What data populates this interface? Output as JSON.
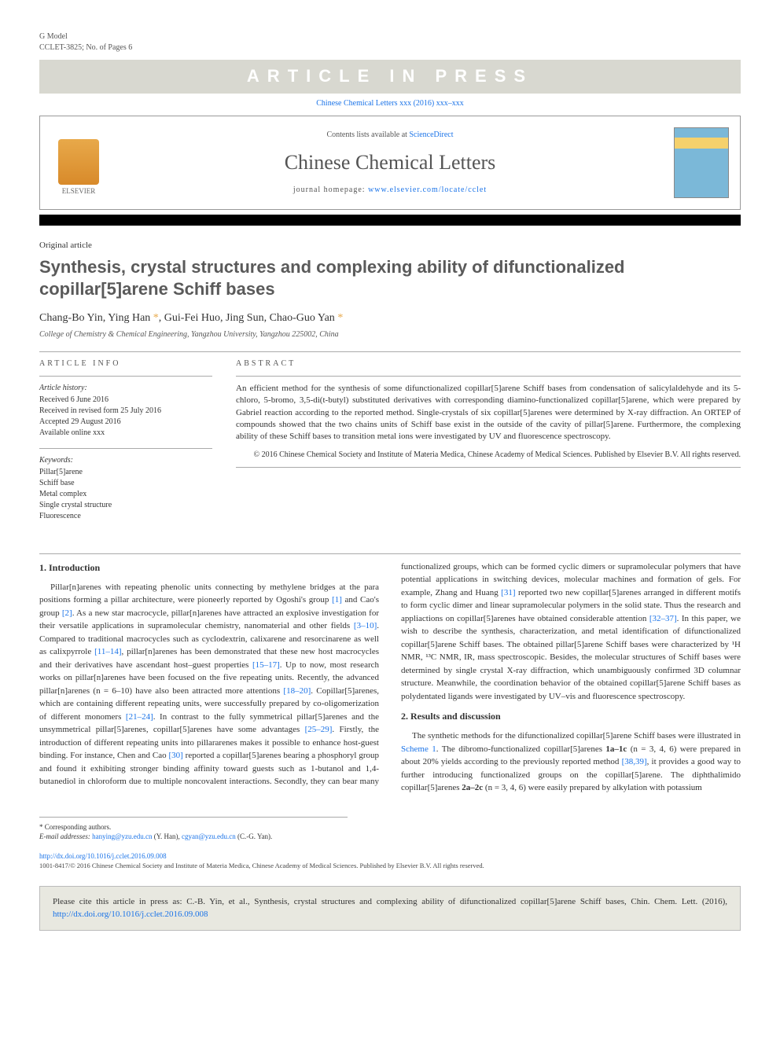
{
  "header": {
    "model": "G Model",
    "ref": "CCLET-3825; No. of Pages 6"
  },
  "press_banner": "ARTICLE IN PRESS",
  "journal_line": "Chinese Chemical Letters xxx (2016) xxx–xxx",
  "journal_box": {
    "contents_text": "Contents lists available at ",
    "contents_link": "ScienceDirect",
    "journal_name": "Chinese Chemical Letters",
    "homepage_label": "journal homepage: ",
    "homepage_url": "www.elsevier.com/locate/cclet",
    "publisher_label": "ELSEVIER"
  },
  "article_type": "Original article",
  "title": "Synthesis, crystal structures and complexing ability of difunctionalized copillar[5]arene Schiff bases",
  "authors_html": "Chang-Bo Yin, Ying Han *, Gui-Fei Huo, Jing Sun, Chao-Guo Yan *",
  "affiliation": "College of Chemistry & Chemical Engineering, Yangzhou University, Yangzhou 225002, China",
  "info": {
    "head": "ARTICLE INFO",
    "history_label": "Article history:",
    "history": [
      "Received 6 June 2016",
      "Received in revised form 25 July 2016",
      "Accepted 29 August 2016",
      "Available online xxx"
    ],
    "keywords_label": "Keywords:",
    "keywords": [
      "Pillar[5]arene",
      "Schiff base",
      "Metal complex",
      "Single crystal structure",
      "Fluorescence"
    ]
  },
  "abstract": {
    "head": "ABSTRACT",
    "text": "An efficient method for the synthesis of some difunctionalized copillar[5]arene Schiff bases from condensation of salicylaldehyde and its 5-chloro, 5-bromo, 3,5-di(t-butyl) substituted derivatives with corresponding diamino-functionalized copillar[5]arene, which were prepared by Gabriel reaction according to the reported method. Single-crystals of six copillar[5]arenes were determined by X-ray diffraction. An ORTEP of compounds showed that the two chains units of Schiff base exist in the outside of the cavity of pillar[5]arene. Furthermore, the complexing ability of these Schiff bases to transition metal ions were investigated by UV and fluorescence spectroscopy.",
    "copyright": "© 2016 Chinese Chemical Society and Institute of Materia Medica, Chinese Academy of Medical Sciences. Published by Elsevier B.V. All rights reserved."
  },
  "sections": {
    "intro_head": "1. Introduction",
    "results_head": "2. Results and discussion"
  },
  "body": {
    "col1_p1": "Pillar[n]arenes with repeating phenolic units connecting by methylene bridges at the para positions forming a pillar architecture, were pioneerly reported by Ogoshi's group [1] and Cao's group [2]. As a new star macrocycle, pillar[n]arenes have attracted an explosive investigation for their versatile applications in supramolecular chemistry, nanomaterial and other fields [3–10]. Compared to traditional macrocycles such as cyclodextrin, calixarene and resorcinarene as well as calixpyrrole [11–14], pillar[n]arenes has been demonstrated that these new host macrocycles and their derivatives have ascendant host–guest properties [15–17]. Up to now, most research works on pillar[n]arenes have been focused on the five repeating units. Recently, the advanced pillar[n]arenes (n = 6–10) have also been attracted more attentions [18–20]. Copillar[5]arenes, which are containing different repeating units, were successfully prepared by co-oligomerization of different monomers [21–24]. In contrast to the fully symmetrical pillar[5]arenes and the unsymmetrical pillar[5]arenes, copillar[5]arenes have some advantages [25–29]. Firstly, the introduction of different repeating units into pillararenes makes it possible to enhance host-guest binding. For instance, Chen and Cao [30] reported a copillar[5]arenes bearing a phosphoryl group and found it exhibiting stronger binding affinity toward guests such as 1-butanol and",
    "col2_p1": "1,4-butanediol in chloroform due to multiple noncovalent interactions. Secondly, they can bear many functionalized groups, which can be formed cyclic dimers or supramolecular polymers that have potential applications in switching devices, molecular machines and formation of gels. For example, Zhang and Huang [31] reported two new copillar[5]arenes arranged in different motifs to form cyclic dimer and linear supramolecular polymers in the solid state. Thus the research and appliactions on copillar[5]arenes have obtained considerable attention [32–37]. In this paper, we wish to describe the synthesis, characterization, and metal identification of difunctionalized copillar[5]arene Schiff bases. The obtained pillar[5]arene Schiff bases were characterized by ¹H NMR, ¹³C NMR, IR, mass spectroscopic. Besides, the molecular structures of Schiff bases were determined by single crystal X-ray diffraction, which unambiguously confirmed 3D columnar structure. Meanwhile, the coordination behavior of the obtained copillar[5]arene Schiff bases as polydentated ligands were investigated by UV–vis and fluorescence spectroscopy.",
    "col2_p2": "The synthetic methods for the difunctionalized copillar[5]arene Schiff bases were illustrated in Scheme 1. The dibromo-functionalized copillar[5]arenes 1a–1c (n = 3, 4, 6) were prepared in about 20% yields according to the previously reported method [38,39], it provides a good way to further introducing functionalized groups on the copillar[5]arene. The diphthalimido copillar[5]arenes 2a–2c (n = 3, 4, 6) were easily prepared by alkylation with potassium"
  },
  "footnote": {
    "corr": "* Corresponding authors.",
    "email_label": "E-mail addresses: ",
    "email1": "hanying@yzu.edu.cn",
    "email1_name": " (Y. Han), ",
    "email2": "cgyan@yzu.edu.cn",
    "email2_name": " (C.-G. Yan)."
  },
  "doi": {
    "url": "http://dx.doi.org/10.1016/j.cclet.2016.09.008",
    "issn_copyright": "1001-8417/© 2016 Chinese Chemical Society and Institute of Materia Medica, Chinese Academy of Medical Sciences. Published by Elsevier B.V. All rights reserved."
  },
  "cite_box": {
    "text": "Please cite this article in press as: C.-B. Yin, et al., Synthesis, crystal structures and complexing ability of difunctionalized copillar[5]arene Schiff bases, Chin. Chem. Lett. (2016), ",
    "link": "http://dx.doi.org/10.1016/j.cclet.2016.09.008"
  },
  "colors": {
    "link": "#1a73e8",
    "banner_bg": "#d8d8d0",
    "black": "#000000"
  }
}
